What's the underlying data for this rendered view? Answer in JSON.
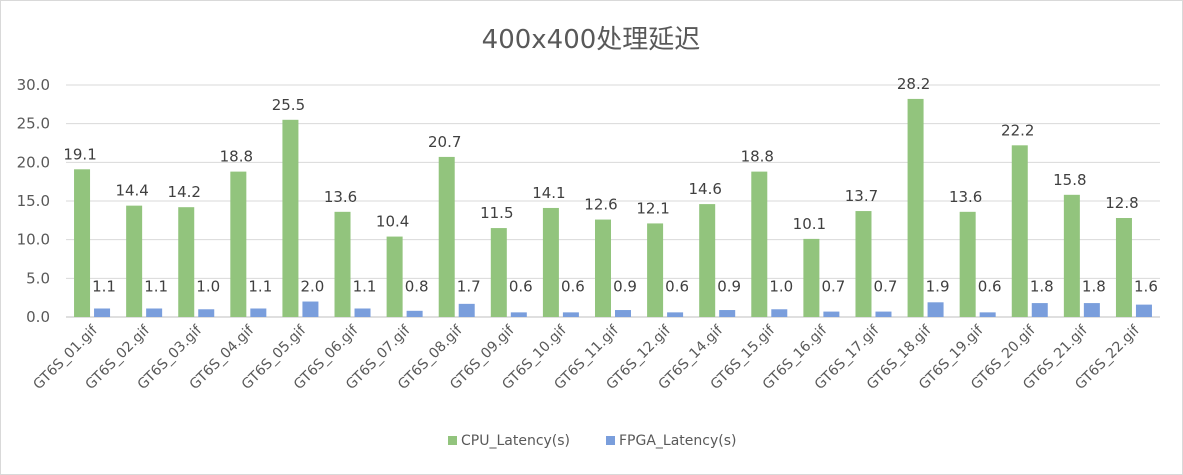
{
  "chart_data": {
    "type": "bar",
    "title": "400x400处理延迟",
    "xlabel": "",
    "ylabel": "",
    "ylim": [
      0,
      30
    ],
    "yticks": [
      "0.0",
      "5.0",
      "10.0",
      "15.0",
      "20.0",
      "25.0",
      "30.0"
    ],
    "grid": true,
    "legend_position": "bottom",
    "categories": [
      "GT6S_01.gif",
      "GT6S_02.gif",
      "GT6S_03.gif",
      "GT6S_04.gif",
      "GT6S_05.gif",
      "GT6S_06.gif",
      "GT6S_07.gif",
      "GT6S_08.gif",
      "GT6S_09.gif",
      "GT6S_10.gif",
      "GT6S_11.gif",
      "GT6S_12.gif",
      "GT6S_14.gif",
      "GT6S_15.gif",
      "GT6S_16.gif",
      "GT6S_17.gif",
      "GT6S_18.gif",
      "GT6S_19.gif",
      "GT6S_20.gif",
      "GT6S_21.gif",
      "GT6S_22.gif"
    ],
    "series": [
      {
        "name": "CPU_Latency(s)",
        "color": "#92c47d",
        "values": [
          19.1,
          14.4,
          14.2,
          18.8,
          25.5,
          13.6,
          10.4,
          20.7,
          11.5,
          14.1,
          12.6,
          12.1,
          14.6,
          18.8,
          10.1,
          13.7,
          28.2,
          13.6,
          22.2,
          15.8,
          12.8
        ]
      },
      {
        "name": "FPGA_Latency(s)",
        "color": "#7a9edc",
        "values": [
          1.1,
          1.1,
          1.0,
          1.1,
          2.0,
          1.1,
          0.8,
          1.7,
          0.6,
          0.6,
          0.9,
          0.6,
          0.9,
          1.0,
          0.7,
          0.7,
          1.9,
          0.6,
          1.8,
          1.8,
          1.6
        ]
      }
    ]
  }
}
